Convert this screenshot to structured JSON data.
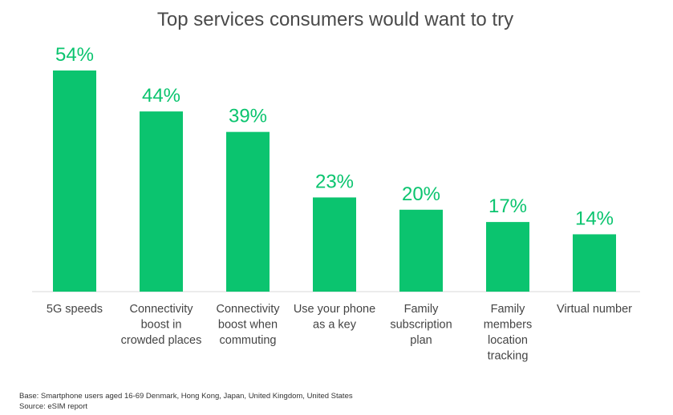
{
  "chart_data": {
    "type": "bar",
    "title": "Top services consumers would want to try",
    "categories": [
      "5G speeds",
      "Connectivity boost in crowded places",
      "Connectivity boost when commuting",
      "Use your phone as a key",
      "Family subscription plan",
      "Family members location tracking",
      "Virtual number"
    ],
    "category_lines": [
      [
        "5G speeds"
      ],
      [
        "Connectivity",
        "boost in",
        "crowded places"
      ],
      [
        "Connectivity",
        "boost when",
        "commuting"
      ],
      [
        "Use your phone",
        "as a key"
      ],
      [
        "Family",
        "subscription",
        "plan"
      ],
      [
        "Family",
        "members",
        "location",
        "tracking"
      ],
      [
        "Virtual number"
      ]
    ],
    "values": [
      54,
      44,
      39,
      23,
      20,
      17,
      14
    ],
    "value_labels": [
      "54%",
      "44%",
      "39%",
      "23%",
      "20%",
      "17%",
      "14%"
    ],
    "unit": "%",
    "ylim": [
      0,
      54
    ],
    "grid": false,
    "legend": "none",
    "colors": {
      "bar": "#0bc46f",
      "axis": "#d9d9d9",
      "title": "#4a4a4a",
      "label": "#444444"
    }
  },
  "footnote": {
    "base": "Base: Smartphone users aged 16-69 Denmark, Hong Kong, Japan, United Kingdom, United States",
    "source": "Source: eSIM report"
  }
}
